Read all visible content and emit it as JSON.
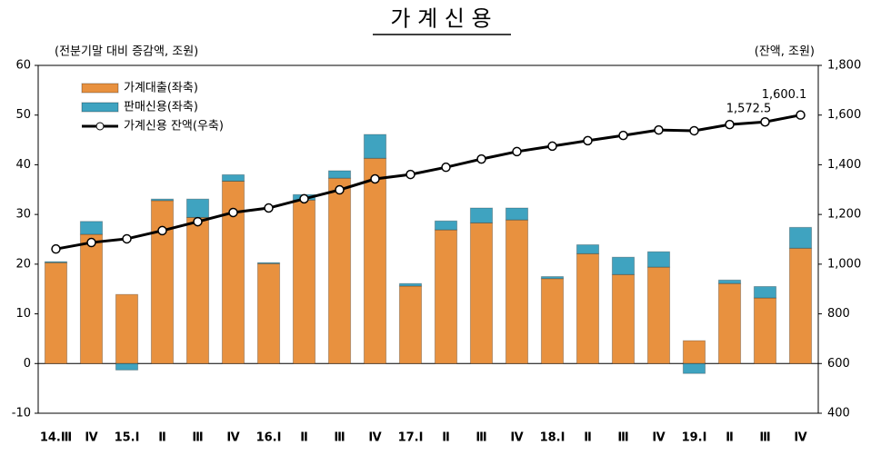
{
  "chart_data": {
    "type": "bar",
    "stacked": true,
    "title": "가 계 신 용",
    "y_label": "(전분기말 대비 증감액, 조원)",
    "y2_label": "(잔액, 조원)",
    "categories": [
      "14.Ⅲ",
      "Ⅳ",
      "15.Ⅰ",
      "Ⅱ",
      "Ⅲ",
      "Ⅳ",
      "16.Ⅰ",
      "Ⅱ",
      "Ⅲ",
      "Ⅳ",
      "17.Ⅰ",
      "Ⅱ",
      "Ⅲ",
      "Ⅳ",
      "18.Ⅰ",
      "Ⅱ",
      "Ⅲ",
      "Ⅳ",
      "19.Ⅰ",
      "Ⅱ",
      "Ⅲ",
      "Ⅳ"
    ],
    "series": [
      {
        "name": "가계대출(좌축)",
        "color": "#e8913f",
        "values": [
          20.3,
          26.0,
          13.9,
          32.8,
          29.4,
          36.7,
          20.1,
          32.9,
          37.3,
          41.3,
          15.6,
          26.9,
          28.3,
          28.9,
          17.1,
          22.1,
          17.9,
          19.4,
          4.6,
          16.1,
          13.2,
          23.2
        ]
      },
      {
        "name": "판매신용(좌축)",
        "color": "#3fa3c0",
        "values": [
          0.2,
          2.6,
          -1.3,
          0.3,
          3.7,
          1.3,
          0.2,
          1.1,
          1.5,
          4.8,
          0.5,
          1.8,
          3.0,
          2.4,
          0.4,
          1.8,
          3.5,
          3.1,
          -2.0,
          0.7,
          2.3,
          4.2
        ]
      },
      {
        "name": "가계신용 잔액(우축)",
        "type": "line",
        "axis": "y2",
        "color": "#000000",
        "values": [
          1061,
          1087,
          1102,
          1135,
          1171,
          1208,
          1226,
          1263,
          1299,
          1343,
          1361,
          1390,
          1423,
          1453,
          1475,
          1497,
          1518,
          1540,
          1537,
          1562,
          1572.5,
          1600.1
        ],
        "value_labels": [
          null,
          null,
          null,
          null,
          null,
          null,
          null,
          null,
          null,
          null,
          null,
          null,
          null,
          null,
          null,
          null,
          null,
          null,
          null,
          null,
          "1,572.5",
          "1,600.1"
        ]
      }
    ],
    "ylim": [
      -10,
      60
    ],
    "yticks": [
      -10,
      0,
      10,
      20,
      30,
      40,
      50,
      60
    ],
    "y2lim": [
      400,
      1800
    ],
    "y2ticks": [
      400,
      600,
      800,
      {
        "value": 1000,
        "label": "1,000"
      },
      {
        "value": 1200,
        "label": "1,200"
      },
      {
        "value": 1400,
        "label": "1,400"
      },
      {
        "value": 1600,
        "label": "1,600"
      },
      {
        "value": 1800,
        "label": "1,800"
      }
    ],
    "grid": false,
    "legend": "upper left"
  }
}
